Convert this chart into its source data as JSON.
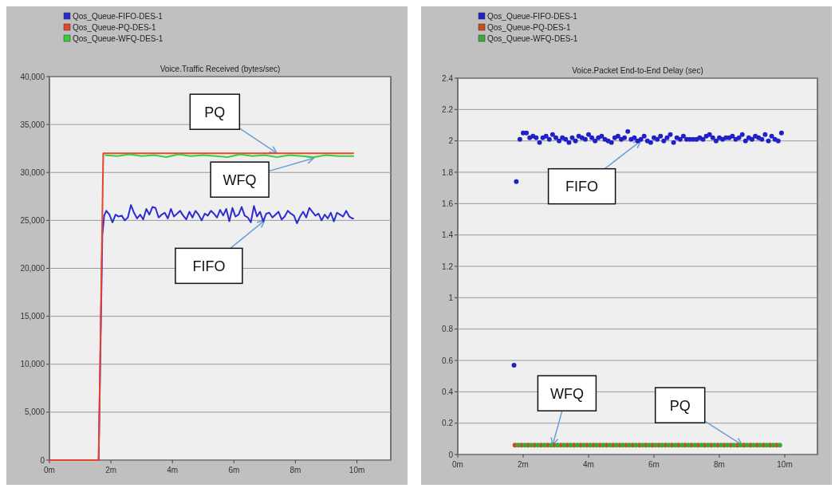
{
  "chart_data": [
    {
      "type": "line",
      "title": "Voice.Traffic Received (bytes/sec)",
      "legend": "top left",
      "grid": "y",
      "marker": "none",
      "line_style": "solid",
      "xlim": [
        0,
        11.1
      ],
      "xticks": [
        {
          "value": 0,
          "label": "0m"
        },
        {
          "value": 2,
          "label": "2m"
        },
        {
          "value": 4,
          "label": "4m"
        },
        {
          "value": 6,
          "label": "6m"
        },
        {
          "value": 8,
          "label": "8m"
        },
        {
          "value": 10,
          "label": "10m"
        }
      ],
      "ylim": [
        0,
        40000
      ],
      "yticks": [
        {
          "value": 0,
          "label": "0"
        },
        {
          "value": 5000,
          "label": "5,000"
        },
        {
          "value": 10000,
          "label": "10,000"
        },
        {
          "value": 15000,
          "label": "15,000"
        },
        {
          "value": 20000,
          "label": "20,000"
        },
        {
          "value": 25000,
          "label": "25,000"
        },
        {
          "value": 30000,
          "label": "30,000"
        },
        {
          "value": 35000,
          "label": "35,000"
        },
        {
          "value": 40000,
          "label": "40,000"
        }
      ],
      "series": [
        {
          "name": "Qos_Queue-FIFO-DES-1",
          "color": "#2b2bd6",
          "x": [
            0,
            1.6,
            1.72,
            1.78,
            1.85,
            1.95,
            2.05,
            2.15,
            2.25,
            2.35,
            2.45,
            2.55,
            2.65,
            2.75,
            2.85,
            2.95,
            3.05,
            3.15,
            3.25,
            3.35,
            3.45,
            3.55,
            3.65,
            3.75,
            3.85,
            3.95,
            4.05,
            4.15,
            4.25,
            4.35,
            4.45,
            4.55,
            4.65,
            4.75,
            4.85,
            4.95,
            5.05,
            5.15,
            5.25,
            5.35,
            5.45,
            5.55,
            5.65,
            5.75,
            5.85,
            5.95,
            6.05,
            6.15,
            6.25,
            6.35,
            6.45,
            6.55,
            6.65,
            6.75,
            6.85,
            6.95,
            7.05,
            7.15,
            7.25,
            7.35,
            7.45,
            7.55,
            7.65,
            7.75,
            7.85,
            7.95,
            8.05,
            8.15,
            8.25,
            8.35,
            8.45,
            8.55,
            8.65,
            8.75,
            8.85,
            8.95,
            9.05,
            9.15,
            9.25,
            9.35,
            9.45,
            9.55,
            9.65,
            9.75,
            9.85,
            9.9
          ],
          "values": [
            0,
            0,
            23500,
            25500,
            26000,
            25600,
            24800,
            25600,
            25400,
            25500,
            25000,
            25300,
            26600,
            25800,
            25200,
            25600,
            25100,
            26200,
            25600,
            26400,
            26300,
            25300,
            25600,
            25800,
            25200,
            26200,
            25400,
            25700,
            26000,
            25500,
            25100,
            25900,
            25300,
            26000,
            25600,
            25000,
            25700,
            25500,
            26000,
            25700,
            25300,
            26100,
            25500,
            26200,
            24900,
            26300,
            25400,
            25600,
            26400,
            25500,
            25300,
            24800,
            26500,
            25400,
            25900,
            24900,
            25700,
            25800,
            25300,
            25600,
            25900,
            25100,
            25400,
            26000,
            25700,
            25500,
            24700,
            25400,
            25900,
            25300,
            26300,
            25900,
            25500,
            25700,
            25000,
            25600,
            25200,
            25800,
            24900,
            25800,
            25600,
            25400,
            26000,
            25400,
            25200,
            25200
          ]
        },
        {
          "name": "Qos_Queue-PQ-DES-1",
          "color": "#e8432c",
          "x": [
            0,
            1.6,
            1.75,
            3,
            5,
            7,
            9,
            9.9
          ],
          "values": [
            0,
            0,
            32000,
            32000,
            32000,
            32000,
            32000,
            32000
          ]
        },
        {
          "name": "Qos_Queue-WFQ-DES-1",
          "color": "#3ccc3c",
          "x": [
            1.8,
            2.2,
            2.6,
            3,
            3.4,
            3.8,
            4.2,
            4.6,
            5,
            5.4,
            5.8,
            6.2,
            6.6,
            7,
            7.4,
            7.8,
            8.2,
            8.6,
            9,
            9.4,
            9.9
          ],
          "values": [
            31800,
            31700,
            31900,
            31700,
            31800,
            31600,
            31900,
            31700,
            31800,
            31700,
            31600,
            31900,
            31700,
            31800,
            31600,
            31800,
            31700,
            31600,
            31800,
            31700,
            31700
          ]
        }
      ],
      "annotations": [
        {
          "text": "PQ",
          "x": 7.4,
          "y": 32000
        },
        {
          "text": "WFQ",
          "x": 8.6,
          "y": 31500
        },
        {
          "text": "FIFO",
          "x": 7.0,
          "y": 25000
        }
      ]
    },
    {
      "type": "scatter",
      "title": "Voice.Packet End-to-End Delay (sec)",
      "legend": "top left",
      "grid": "y",
      "marker": "circle",
      "xlim": [
        0,
        11
      ],
      "xticks": [
        {
          "value": 0,
          "label": "0m"
        },
        {
          "value": 2,
          "label": "2m"
        },
        {
          "value": 4,
          "label": "4m"
        },
        {
          "value": 6,
          "label": "6m"
        },
        {
          "value": 8,
          "label": "8m"
        },
        {
          "value": 10,
          "label": "10m"
        }
      ],
      "ylim": [
        0,
        2.4
      ],
      "yticks": [
        0,
        0.2,
        0.4,
        0.6,
        0.8,
        1,
        1.2,
        1.4,
        1.6,
        1.8,
        2,
        2.2,
        2.4
      ],
      "series": [
        {
          "name": "Qos_Queue-FIFO-DES-1",
          "color": "#2020c8",
          "x": [
            1.72,
            1.79,
            1.9,
            2.0,
            2.1,
            2.2,
            2.3,
            2.4,
            2.5,
            2.6,
            2.7,
            2.8,
            2.9,
            3.0,
            3.1,
            3.2,
            3.3,
            3.4,
            3.5,
            3.6,
            3.7,
            3.8,
            3.9,
            4.0,
            4.1,
            4.2,
            4.3,
            4.4,
            4.5,
            4.6,
            4.7,
            4.8,
            4.9,
            5.0,
            5.1,
            5.2,
            5.3,
            5.4,
            5.5,
            5.6,
            5.7,
            5.8,
            5.9,
            6.0,
            6.1,
            6.2,
            6.3,
            6.4,
            6.5,
            6.6,
            6.7,
            6.8,
            6.9,
            7.0,
            7.1,
            7.2,
            7.3,
            7.4,
            7.5,
            7.6,
            7.7,
            7.8,
            7.9,
            8.0,
            8.1,
            8.2,
            8.3,
            8.4,
            8.5,
            8.6,
            8.7,
            8.8,
            8.9,
            9.0,
            9.1,
            9.2,
            9.3,
            9.4,
            9.5,
            9.6,
            9.7,
            9.8,
            9.9
          ],
          "values": [
            0.57,
            1.74,
            2.01,
            2.05,
            2.05,
            2.02,
            2.03,
            2.02,
            1.99,
            2.02,
            2.03,
            2.01,
            2.04,
            2.02,
            2.0,
            2.02,
            2.01,
            1.99,
            2.02,
            2.0,
            2.03,
            2.02,
            2.01,
            2.04,
            2.02,
            2.0,
            2.02,
            2.03,
            2.01,
            2.0,
            1.99,
            2.02,
            2.03,
            2.01,
            2.02,
            2.06,
            2.01,
            2.02,
            2.0,
            2.01,
            2.03,
            2.0,
            1.99,
            2.02,
            2.01,
            2.03,
            2.0,
            2.02,
            2.04,
            1.99,
            2.02,
            2.01,
            2.03,
            2.01,
            2.01,
            2.01,
            2.01,
            2.02,
            2.01,
            2.03,
            2.04,
            2.02,
            2.0,
            2.02,
            2.01,
            2.02,
            2.02,
            2.03,
            2.01,
            2.02,
            2.04,
            2.0,
            2.02,
            2.01,
            2.03,
            2.02,
            2.01,
            2.04,
            2.0,
            2.03,
            2.01,
            2.0,
            2.05
          ]
        },
        {
          "name": "Qos_Queue-PQ-DES-1",
          "color": "#d04a1a",
          "x": [
            1.75,
            1.95,
            2.15,
            2.35,
            2.55,
            2.75,
            2.95,
            3.15,
            3.35,
            3.55,
            3.75,
            3.95,
            4.15,
            4.35,
            4.55,
            4.75,
            4.95,
            5.15,
            5.35,
            5.55,
            5.75,
            5.95,
            6.15,
            6.35,
            6.55,
            6.75,
            6.95,
            7.15,
            7.35,
            7.55,
            7.75,
            7.95,
            8.15,
            8.35,
            8.55,
            8.75,
            8.95,
            9.15,
            9.35,
            9.55,
            9.75
          ],
          "values": [
            0.06,
            0.06,
            0.06,
            0.06,
            0.06,
            0.06,
            0.06,
            0.06,
            0.06,
            0.06,
            0.06,
            0.06,
            0.06,
            0.06,
            0.06,
            0.06,
            0.06,
            0.06,
            0.06,
            0.06,
            0.06,
            0.06,
            0.06,
            0.06,
            0.06,
            0.06,
            0.06,
            0.06,
            0.06,
            0.06,
            0.06,
            0.06,
            0.06,
            0.06,
            0.06,
            0.06,
            0.06,
            0.06,
            0.06,
            0.06,
            0.06
          ]
        },
        {
          "name": "Qos_Queue-WFQ-DES-1",
          "color": "#3aa83a",
          "x": [
            1.85,
            2.05,
            2.25,
            2.45,
            2.65,
            2.85,
            3.05,
            3.25,
            3.45,
            3.65,
            3.85,
            4.05,
            4.25,
            4.45,
            4.65,
            4.85,
            5.05,
            5.25,
            5.45,
            5.65,
            5.85,
            6.05,
            6.25,
            6.45,
            6.65,
            6.85,
            7.05,
            7.25,
            7.45,
            7.65,
            7.85,
            8.05,
            8.25,
            8.45,
            8.65,
            8.85,
            9.05,
            9.25,
            9.45,
            9.65,
            9.85
          ],
          "values": [
            0.06,
            0.06,
            0.06,
            0.06,
            0.06,
            0.06,
            0.06,
            0.06,
            0.06,
            0.06,
            0.06,
            0.06,
            0.06,
            0.06,
            0.06,
            0.06,
            0.06,
            0.06,
            0.06,
            0.06,
            0.06,
            0.06,
            0.06,
            0.06,
            0.06,
            0.06,
            0.06,
            0.06,
            0.06,
            0.06,
            0.06,
            0.06,
            0.06,
            0.06,
            0.06,
            0.06,
            0.06,
            0.06,
            0.06,
            0.06,
            0.06
          ]
        }
      ],
      "annotations": [
        {
          "text": "FIFO",
          "x": 5.6,
          "y": 2.0
        },
        {
          "text": "WFQ",
          "x": 2.9,
          "y": 0.06
        },
        {
          "text": "PQ",
          "x": 8.7,
          "y": 0.06
        }
      ]
    }
  ]
}
